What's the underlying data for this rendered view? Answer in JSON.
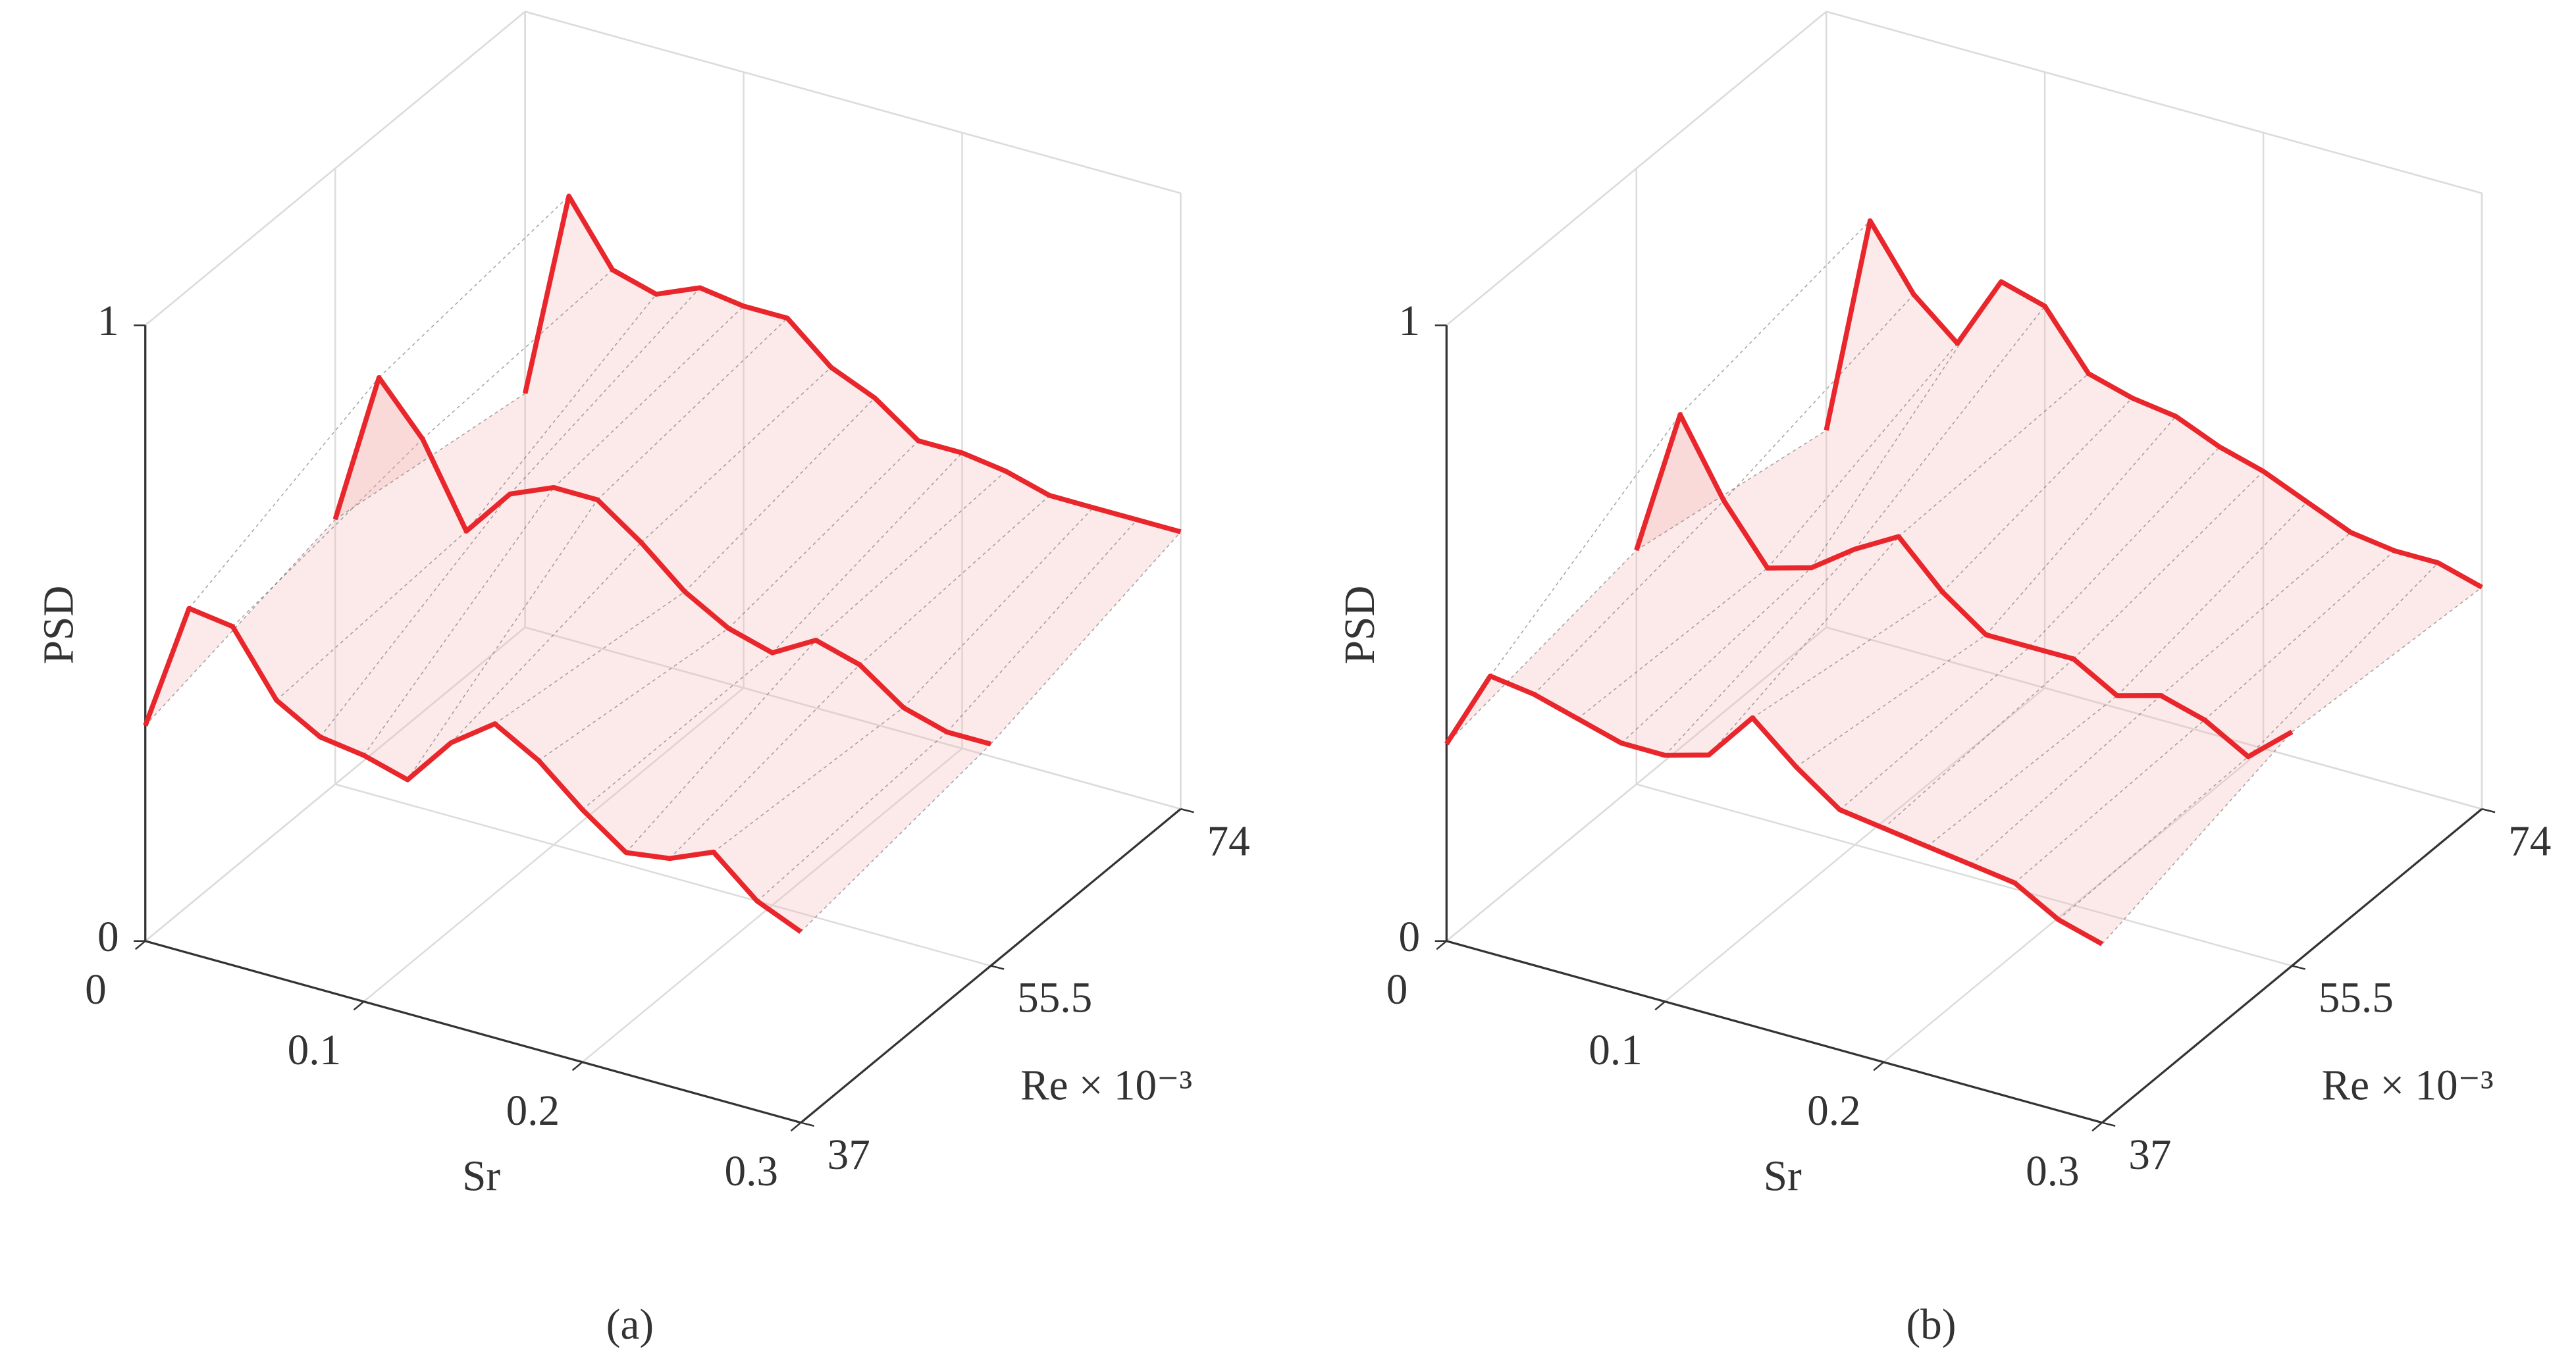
{
  "chart_data": [
    {
      "type": "line3d",
      "caption": "(a)",
      "xlabel": "Sr",
      "ylabel": "Re × 10⁻³",
      "zlabel": "PSD",
      "x": [
        0,
        0.02,
        0.04,
        0.06,
        0.08,
        0.1,
        0.12,
        0.14,
        0.16,
        0.18,
        0.2,
        0.22,
        0.24,
        0.26,
        0.28,
        0.3
      ],
      "xlim": [
        0,
        0.3
      ],
      "xticks": [
        0,
        0.1,
        0.2,
        0.3
      ],
      "ylim": [
        37,
        74
      ],
      "yticks": [
        37,
        55.5,
        74
      ],
      "zlim": [
        0,
        1
      ],
      "zticks": [
        0,
        1
      ],
      "grid": true,
      "series": [
        {
          "y": 37,
          "color": "#e8262b",
          "values": [
            0.35,
            0.56,
            0.55,
            0.45,
            0.41,
            0.4,
            0.38,
            0.46,
            0.51,
            0.47,
            0.41,
            0.36,
            0.37,
            0.4,
            0.34,
            0.31
          ]
        },
        {
          "y": 55.5,
          "color": "#e8262b",
          "values": [
            0.43,
            0.68,
            0.6,
            0.47,
            0.55,
            0.58,
            0.58,
            0.53,
            0.47,
            0.43,
            0.41,
            0.45,
            0.43,
            0.38,
            0.36,
            0.36
          ]
        },
        {
          "y": 74,
          "color": "#e8262b",
          "values": [
            0.38,
            0.72,
            0.62,
            0.6,
            0.63,
            0.62,
            0.62,
            0.56,
            0.53,
            0.48,
            0.48,
            0.47,
            0.45,
            0.45,
            0.45,
            0.45
          ]
        }
      ]
    },
    {
      "type": "line3d",
      "caption": "(b)",
      "xlabel": "Sr",
      "ylabel": "Re × 10⁻³",
      "zlabel": "PSD",
      "x": [
        0,
        0.02,
        0.04,
        0.06,
        0.08,
        0.1,
        0.12,
        0.14,
        0.16,
        0.18,
        0.2,
        0.22,
        0.24,
        0.26,
        0.28,
        0.3
      ],
      "xlim": [
        0,
        0.3
      ],
      "xticks": [
        0,
        0.1,
        0.2,
        0.3
      ],
      "ylim": [
        37,
        74
      ],
      "yticks": [
        37,
        55.5,
        74
      ],
      "zlim": [
        0,
        1
      ],
      "zticks": [
        0,
        1
      ],
      "grid": true,
      "series": [
        {
          "y": 37,
          "color": "#e8262b",
          "values": [
            0.32,
            0.45,
            0.44,
            0.42,
            0.4,
            0.4,
            0.42,
            0.5,
            0.44,
            0.39,
            0.38,
            0.37,
            0.36,
            0.35,
            0.31,
            0.29
          ]
        },
        {
          "y": 55.5,
          "color": "#e8262b",
          "values": [
            0.38,
            0.62,
            0.5,
            0.41,
            0.43,
            0.48,
            0.52,
            0.45,
            0.4,
            0.4,
            0.4,
            0.36,
            0.38,
            0.36,
            0.32,
            0.38
          ]
        },
        {
          "y": 74,
          "color": "#e8262b",
          "values": [
            0.32,
            0.68,
            0.58,
            0.52,
            0.64,
            0.62,
            0.53,
            0.51,
            0.5,
            0.47,
            0.45,
            0.42,
            0.39,
            0.38,
            0.38,
            0.36
          ]
        }
      ]
    }
  ]
}
